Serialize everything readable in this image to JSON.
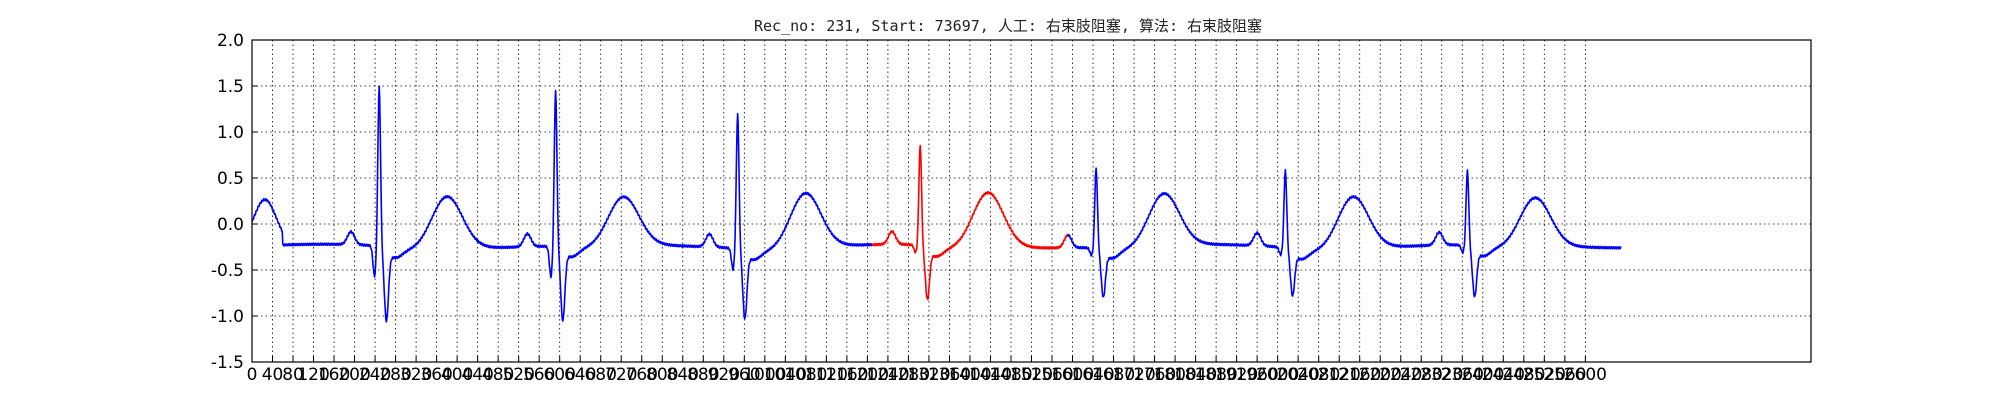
{
  "chart_data": {
    "type": "line",
    "title": "Rec_no: 231, Start: 73697, 人工: 右束肢阻塞, 算法: 右束肢阻塞",
    "xlabel": "",
    "ylabel": "",
    "xlim": [
      0,
      3040
    ],
    "ylim": [
      -1.5,
      2.0
    ],
    "grid": true,
    "grid_style": "dotted",
    "y_ticks": [
      "-1.5",
      "-1.0",
      "-0.5",
      "0.0",
      "0.5",
      "1.0",
      "1.5",
      "2.0"
    ],
    "x_ticks": [
      "0",
      "40",
      "80",
      "120",
      "160",
      "200",
      "240",
      "280",
      "320",
      "360",
      "400",
      "440",
      "480",
      "520",
      "560",
      "600",
      "640",
      "680",
      "720",
      "760",
      "800",
      "840",
      "880",
      "920",
      "960",
      "1000",
      "1040",
      "1080",
      "1120",
      "1160",
      "1200",
      "1240",
      "1280",
      "1320",
      "1360",
      "1400",
      "1440",
      "1480",
      "1520",
      "1560",
      "1600",
      "1640",
      "1680",
      "1720",
      "1760",
      "1800",
      "1840",
      "1880",
      "1920",
      "1960",
      "2000",
      "2040",
      "2080",
      "2120",
      "2160",
      "2200",
      "2240",
      "2280",
      "2320",
      "2360",
      "2400",
      "2440",
      "2480",
      "2520",
      "2560",
      "2600"
    ],
    "highlight_range": [
      1210,
      1590
    ],
    "colors": {
      "normal": "#0000ff",
      "highlight": "#ff0000",
      "axis": "#000000",
      "grid": "#000000"
    },
    "beats": [
      {
        "r_x": 248,
        "r_peak": 1.5,
        "q_min": -0.55,
        "s_min": -1.05,
        "t_x": 380,
        "t_peak": 0.22
      },
      {
        "r_x": 592,
        "r_peak": 1.45,
        "q_min": -0.55,
        "s_min": -1.05,
        "t_x": 724,
        "t_peak": 0.18
      },
      {
        "r_x": 947,
        "r_peak": 1.22,
        "q_min": -0.45,
        "s_min": -1.0,
        "t_x": 1079,
        "t_peak": 0.25
      },
      {
        "r_x": 1303,
        "r_peak": 0.85,
        "q_min": -0.3,
        "s_min": -0.83,
        "t_x": 1435,
        "t_peak": 0.25
      },
      {
        "r_x": 1646,
        "r_peak": 0.62,
        "q_min": -0.3,
        "s_min": -0.78,
        "t_x": 1778,
        "t_peak": 0.22
      },
      {
        "r_x": 2015,
        "r_peak": 0.6,
        "q_min": -0.3,
        "s_min": -0.76,
        "t_x": 2147,
        "t_peak": 0.22
      },
      {
        "r_x": 2370,
        "r_peak": 0.57,
        "q_min": -0.3,
        "s_min": -0.8,
        "t_x": 2502,
        "t_peak": 0.18
      }
    ],
    "signal_end_x": 2670
  }
}
